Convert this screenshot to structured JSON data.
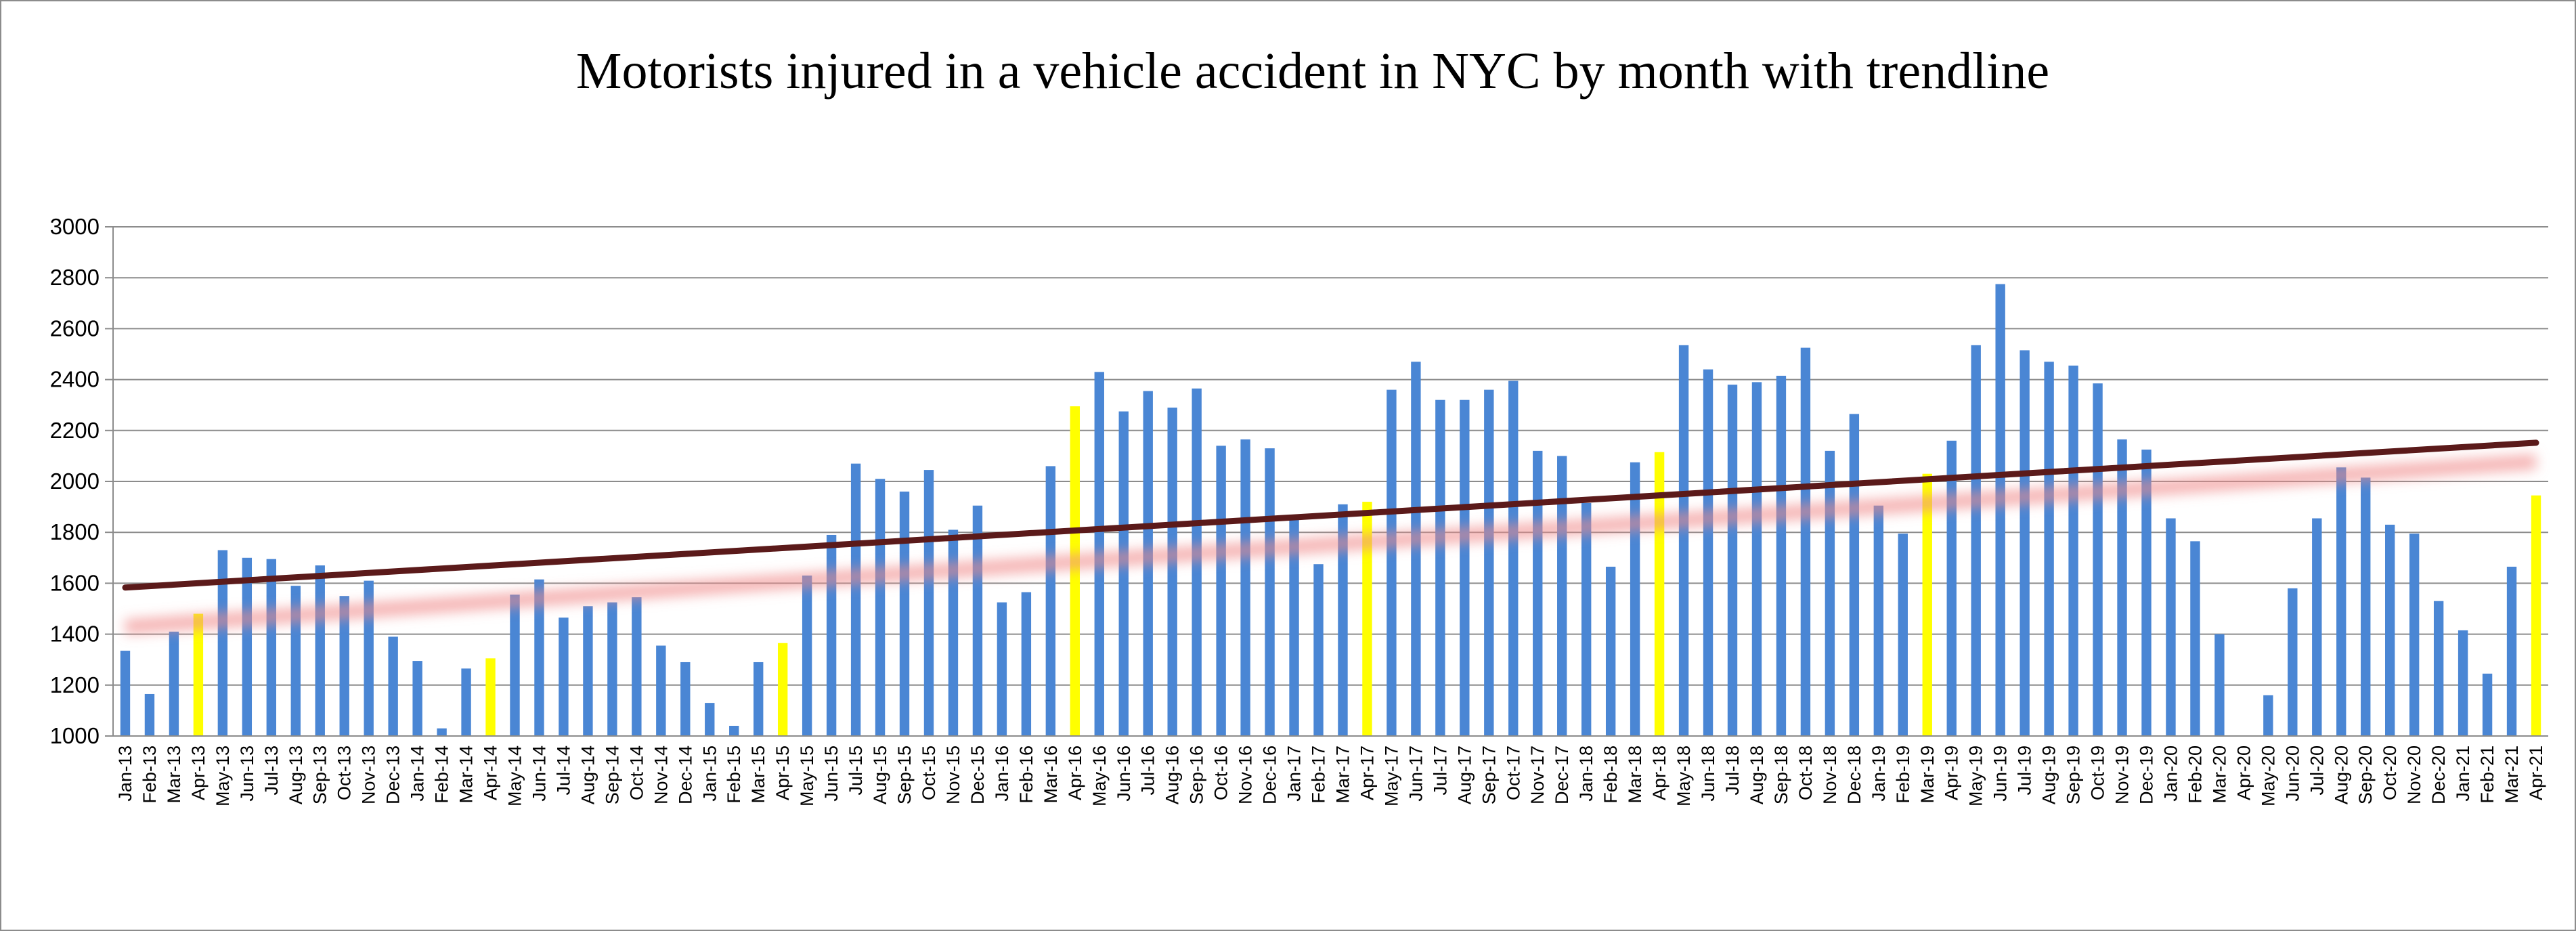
{
  "chart_data": {
    "type": "bar",
    "title": "Motorists injured in a vehicle accident in NYC by month with trendline",
    "xlabel": "",
    "ylabel": "",
    "ylim": [
      1000,
      3000
    ],
    "yticks": [
      "1000",
      "1200",
      "1400",
      "1600",
      "1800",
      "2000",
      "2200",
      "2400",
      "2600",
      "2800",
      "3000"
    ],
    "grid": true,
    "legend": "none",
    "colors": {
      "bar": "#4a86d4",
      "highlight": "#ffff00",
      "trendline": "#5b1a1a",
      "trend_glow": "#f08a8a",
      "grid": "#8c8c8c"
    },
    "categories": [
      "Jan-13",
      "Feb-13",
      "Mar-13",
      "Apr-13",
      "May-13",
      "Jun-13",
      "Jul-13",
      "Aug-13",
      "Sep-13",
      "Oct-13",
      "Nov-13",
      "Dec-13",
      "Jan-14",
      "Feb-14",
      "Mar-14",
      "Apr-14",
      "May-14",
      "Jun-14",
      "Jul-14",
      "Aug-14",
      "Sep-14",
      "Oct-14",
      "Nov-14",
      "Dec-14",
      "Jan-15",
      "Feb-15",
      "Mar-15",
      "Apr-15",
      "May-15",
      "Jun-15",
      "Jul-15",
      "Aug-15",
      "Sep-15",
      "Oct-15",
      "Nov-15",
      "Dec-15",
      "Jan-16",
      "Feb-16",
      "Mar-16",
      "Apr-16",
      "May-16",
      "Jun-16",
      "Jul-16",
      "Aug-16",
      "Sep-16",
      "Oct-16",
      "Nov-16",
      "Dec-16",
      "Jan-17",
      "Feb-17",
      "Mar-17",
      "Apr-17",
      "May-17",
      "Jun-17",
      "Jul-17",
      "Aug-17",
      "Sep-17",
      "Oct-17",
      "Nov-17",
      "Dec-17",
      "Jan-18",
      "Feb-18",
      "Mar-18",
      "Apr-18",
      "May-18",
      "Jun-18",
      "Jul-18",
      "Aug-18",
      "Sep-18",
      "Oct-18",
      "Nov-18",
      "Dec-18",
      "Jan-19",
      "Feb-19",
      "Mar-19",
      "Apr-19",
      "May-19",
      "Jun-19",
      "Jul-19",
      "Aug-19",
      "Sep-19",
      "Oct-19",
      "Nov-19",
      "Dec-19",
      "Jan-20",
      "Feb-20",
      "Mar-20",
      "Apr-20",
      "May-20",
      "Jun-20",
      "Jul-20",
      "Aug-20",
      "Sep-20",
      "Oct-20",
      "Nov-20",
      "Dec-20",
      "Jan-21",
      "Feb-21",
      "Mar-21",
      "Apr-21"
    ],
    "values": [
      1335,
      1165,
      1410,
      1480,
      1730,
      1700,
      1695,
      1590,
      1670,
      1550,
      1610,
      1390,
      1295,
      1030,
      1265,
      1305,
      1555,
      1615,
      1465,
      1510,
      1525,
      1545,
      1355,
      1290,
      1130,
      1040,
      1290,
      1365,
      1630,
      1790,
      2070,
      2010,
      1960,
      2045,
      1810,
      1905,
      1525,
      1565,
      2060,
      2295,
      2430,
      2275,
      2355,
      2290,
      2365,
      2140,
      2165,
      2130,
      1855,
      1675,
      1910,
      1920,
      2360,
      2470,
      2320,
      2320,
      2360,
      2395,
      2120,
      2100,
      1915,
      1665,
      2075,
      2115,
      2535,
      2440,
      2380,
      2390,
      2415,
      2525,
      2120,
      2265,
      1905,
      1795,
      2030,
      2160,
      2535,
      2775,
      2515,
      2470,
      2455,
      2385,
      2165,
      2125,
      1855,
      1765,
      1400,
      null,
      1160,
      1580,
      1855,
      2055,
      2015,
      1830,
      1795,
      1530,
      1415,
      1245,
      1665,
      1945
    ],
    "highlighted": [
      "Apr-13",
      "Apr-14",
      "Apr-15",
      "Apr-16",
      "Apr-17",
      "Apr-18",
      "Mar-19",
      "Apr-21"
    ],
    "trendline": {
      "start": 1583,
      "end": 2152
    }
  }
}
